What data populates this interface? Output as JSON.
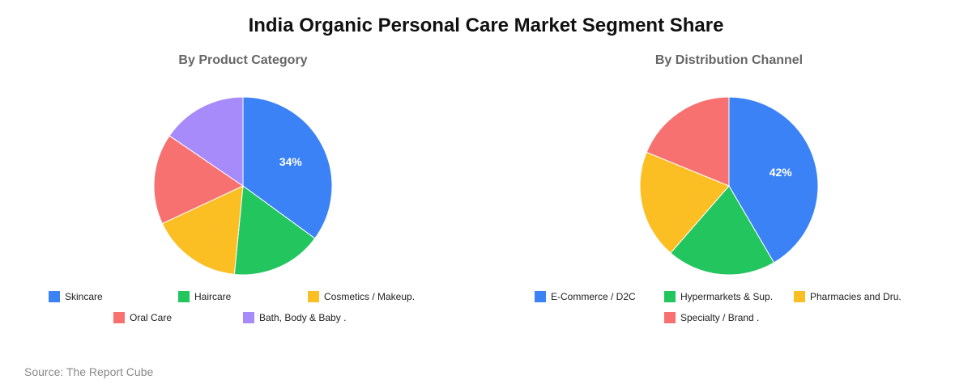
{
  "title": "India Organic Personal Care Market Segment Share",
  "source": "Source: The Report Cube",
  "chart_data": [
    {
      "type": "pie",
      "title": "By Product Category",
      "series": [
        {
          "name": "Skincare",
          "value": 34,
          "color": "#3b82f6",
          "label": "34%"
        },
        {
          "name": "Haircare",
          "value": 16,
          "color": "#22c55e",
          "label": ""
        },
        {
          "name": "Cosmetics / Makeup.",
          "value": 16,
          "color": "#fbbf24",
          "label": ""
        },
        {
          "name": "Oral Care",
          "value": 16,
          "color": "#f87171",
          "label": ""
        },
        {
          "name": "Bath, Body & Baby .",
          "value": 15,
          "color": "#a78bfa",
          "label": ""
        }
      ]
    },
    {
      "type": "pie",
      "title": "By Distribution Channel",
      "series": [
        {
          "name": "E-Commerce / D2C",
          "value": 42,
          "color": "#3b82f6",
          "label": "42%"
        },
        {
          "name": "Hypermarkets & Sup.",
          "value": 20,
          "color": "#22c55e",
          "label": ""
        },
        {
          "name": "Pharmacies and Dru.",
          "value": 20,
          "color": "#fbbf24",
          "label": ""
        },
        {
          "name": "Specialty / Brand .",
          "value": 19,
          "color": "#f87171",
          "label": ""
        }
      ]
    }
  ]
}
